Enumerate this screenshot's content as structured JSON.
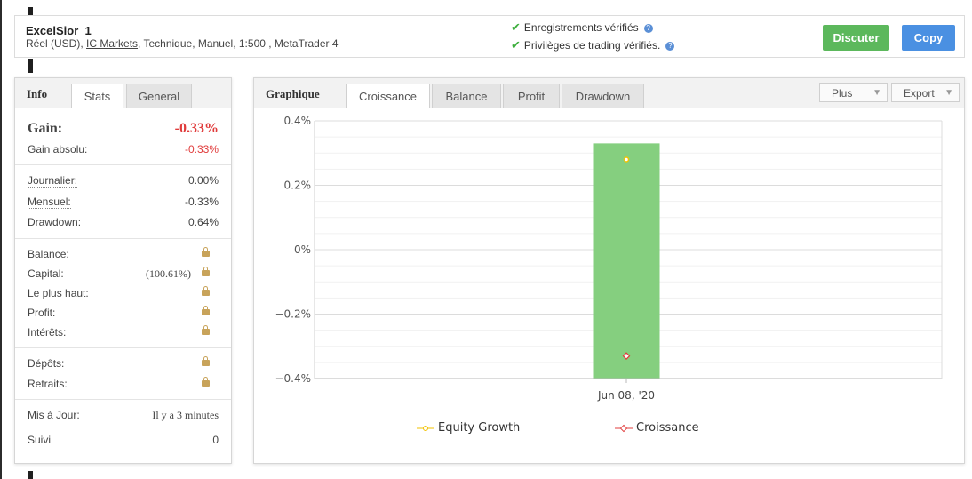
{
  "account": {
    "name": "ExcelSior_1",
    "desc_prefix": "Réel (USD), ",
    "broker": "IC Markets",
    "desc_suffix": ", Technique, Manuel, 1:500 , MetaTrader 4"
  },
  "verification": [
    {
      "label": "Enregistrements vérifiés",
      "icon": "check-icon"
    },
    {
      "label": "Privilèges de trading vérifiés.",
      "icon": "check-icon"
    }
  ],
  "buttons": {
    "discuss": "Discuter",
    "copy": "Copy"
  },
  "info_panel": {
    "title": "Info",
    "tabs": [
      "Stats",
      "General"
    ],
    "gain": {
      "label": "Gain:",
      "value": "-0.33%"
    },
    "abs_gain": {
      "label": "Gain absolu:",
      "value": "-0.33%"
    },
    "period_stats": [
      {
        "label": "Journalier:",
        "value": "0.00%"
      },
      {
        "label": "Mensuel:",
        "value": "-0.33%"
      },
      {
        "label": "Drawdown:",
        "value": "0.64%"
      }
    ],
    "locked_stats": [
      "Balance:",
      "Capital:",
      "Le plus haut:",
      "Profit:",
      "Intérêts:"
    ],
    "capital_pct": "(100.61%)",
    "flows": [
      "Dépôts:",
      "Retraits:"
    ],
    "updated": {
      "label": "Mis à Jour:",
      "value": "Il y a 3 minutes"
    },
    "followers": {
      "label": "Suivi",
      "value": "0"
    }
  },
  "chart_panel": {
    "title": "Graphique",
    "tabs": [
      "Croissance",
      "Balance",
      "Profit",
      "Drawdown"
    ],
    "dropdowns": [
      "Plus",
      "Export"
    ]
  },
  "chart_data": {
    "type": "bar",
    "categories": [
      "Jun 08, '20"
    ],
    "ylim": [
      -0.4,
      0.4
    ],
    "yticks": [
      0.4,
      0.2,
      0,
      -0.2,
      -0.4
    ],
    "ytick_labels": [
      "0.4%",
      "0.2%",
      "0%",
      "−0.2%",
      "−0.4%"
    ],
    "bar": {
      "from": -0.4,
      "to": 0.33,
      "color": "#85cf7f"
    },
    "series": [
      {
        "name": "Equity Growth",
        "values": [
          0.28
        ],
        "color": "#f2c200",
        "marker": "circle"
      },
      {
        "name": "Croissance",
        "values": [
          -0.33
        ],
        "color": "#e03c3c",
        "marker": "diamond"
      }
    ],
    "grid": true
  }
}
